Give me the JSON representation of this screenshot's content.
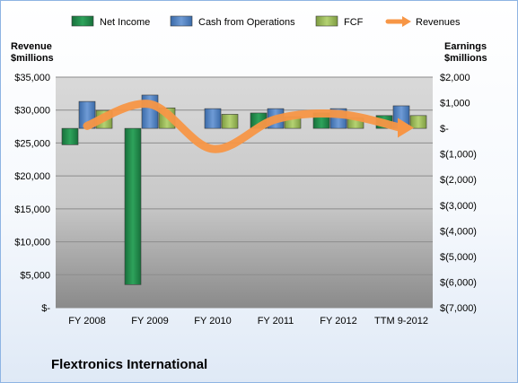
{
  "chart_data": {
    "type": "bar",
    "title": "Flextronics International",
    "categories": [
      "FY 2008",
      "FY 2009",
      "FY 2010",
      "FY 2011",
      "FY 2012",
      "TTM 9-2012"
    ],
    "left_axis": {
      "label": "Revenue\n$millions",
      "ylim": [
        0,
        35000
      ],
      "ticks": [
        "$-",
        "$5,000",
        "$10,000",
        "$15,000",
        "$20,000",
        "$25,000",
        "$30,000",
        "$35,000"
      ]
    },
    "right_axis": {
      "label": "Earnings\n$millions",
      "ylim": [
        -7000,
        2000
      ],
      "ticks": [
        "$(7,000)",
        "$(6,000)",
        "$(5,000)",
        "$(4,000)",
        "$(3,000)",
        "$(2,000)",
        "$(1,000)",
        "$-",
        "$1,000",
        "$2,000"
      ]
    },
    "series": [
      {
        "name": "Net Income",
        "axis": "right",
        "kind": "bar",
        "color": "#1e8449",
        "values": [
          -640,
          -6100,
          0,
          600,
          600,
          500
        ]
      },
      {
        "name": "Cash from Operations",
        "axis": "right",
        "kind": "bar",
        "color": "#4f81bd",
        "values": [
          1050,
          1300,
          770,
          770,
          770,
          880
        ]
      },
      {
        "name": "FCF",
        "axis": "right",
        "kind": "bar",
        "color": "#9bbb59",
        "values": [
          700,
          800,
          550,
          450,
          400,
          500
        ]
      },
      {
        "name": "Revenues",
        "axis": "left",
        "kind": "line",
        "color": "#f79646",
        "values": [
          27600,
          30900,
          24100,
          28600,
          29400,
          27300
        ]
      }
    ],
    "grid": true,
    "legend": "top"
  }
}
